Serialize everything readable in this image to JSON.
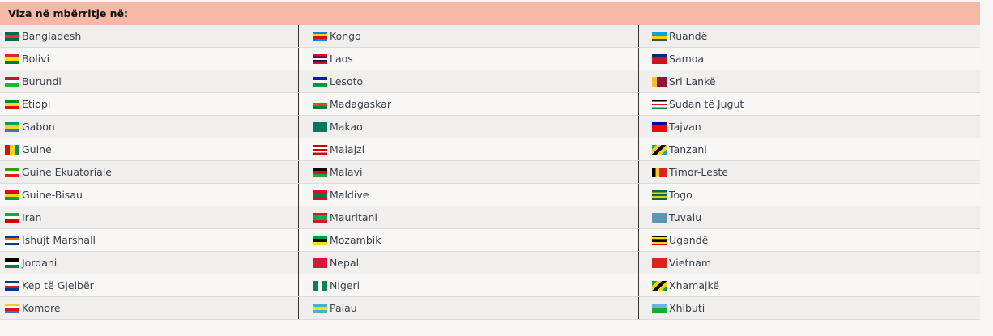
{
  "header": {
    "title": "Viza në mbërritje në:"
  },
  "columns": [
    [
      {
        "name": "Bangladesh",
        "flag": [
          "#006a4e",
          "#f42a41",
          "#006a4e"
        ],
        "icon": "bangladesh-flag-icon"
      },
      {
        "name": "Bolivi",
        "flag": [
          "#d52b1e",
          "#f9e300",
          "#007934"
        ],
        "icon": "bolivia-flag-icon"
      },
      {
        "name": "Burundi",
        "flag": [
          "#ce1126",
          "#ffffff",
          "#1eb53a"
        ],
        "icon": "burundi-flag-icon"
      },
      {
        "name": "Etiopi",
        "flag": [
          "#078930",
          "#fcdd09",
          "#da121a"
        ],
        "icon": "ethiopia-flag-icon"
      },
      {
        "name": "Gabon",
        "flag": [
          "#009e60",
          "#fcd116",
          "#3a75c4"
        ],
        "icon": "gabon-flag-icon"
      },
      {
        "name": "Guine",
        "flag": [
          "#ce1126",
          "#fcd116",
          "#009460"
        ],
        "dir": "v",
        "icon": "guinea-flag-icon"
      },
      {
        "name": "Guine Ekuatoriale",
        "flag": [
          "#3e9a00",
          "#ffffff",
          "#e32118"
        ],
        "icon": "equatorial-guinea-flag-icon"
      },
      {
        "name": "Guine-Bisau",
        "flag": [
          "#ce1126",
          "#fcd116",
          "#009e49"
        ],
        "icon": "guinea-bissau-flag-icon"
      },
      {
        "name": "Iran",
        "flag": [
          "#239f40",
          "#ffffff",
          "#da0000"
        ],
        "icon": "iran-flag-icon"
      },
      {
        "name": "Ishujt Marshall",
        "flag": [
          "#003893",
          "#dd7500",
          "#ffffff",
          "#003893"
        ],
        "icon": "marshall-islands-flag-icon"
      },
      {
        "name": "Jordani",
        "flag": [
          "#000000",
          "#ffffff",
          "#007a3d"
        ],
        "icon": "jordan-flag-icon"
      },
      {
        "name": "Kep të Gjelbër",
        "flag": [
          "#003893",
          "#ffffff",
          "#cf2027",
          "#003893"
        ],
        "icon": "cape-verde-flag-icon"
      },
      {
        "name": "Komore",
        "flag": [
          "#ffc61e",
          "#ffffff",
          "#ce1126",
          "#3a75c4"
        ],
        "icon": "comoros-flag-icon"
      }
    ],
    [
      {
        "name": "Kongo",
        "flag": [
          "#007fff",
          "#f7d618",
          "#ce1021",
          "#007fff"
        ],
        "icon": "dr-congo-flag-icon"
      },
      {
        "name": "Laos",
        "flag": [
          "#ce1126",
          "#002868",
          "#ffffff",
          "#002868",
          "#ce1126"
        ],
        "icon": "laos-flag-icon"
      },
      {
        "name": "Lesoto",
        "flag": [
          "#00209f",
          "#ffffff",
          "#009543"
        ],
        "icon": "lesotho-flag-icon"
      },
      {
        "name": "Madagaskar",
        "flag": [
          "#ffffff",
          "#fc3d32",
          "#007e3a"
        ],
        "icon": "madagascar-flag-icon"
      },
      {
        "name": "Makao",
        "flag": [
          "#00785e",
          "#00785e"
        ],
        "icon": "macau-flag-icon"
      },
      {
        "name": "Malajzi",
        "flag": [
          "#cc0001",
          "#ffffff",
          "#cc0001",
          "#ffffff",
          "#cc0001"
        ],
        "icon": "malaysia-flag-icon"
      },
      {
        "name": "Malavi",
        "flag": [
          "#000000",
          "#ce1126",
          "#339e35"
        ],
        "icon": "malawi-flag-icon"
      },
      {
        "name": "Maldive",
        "flag": [
          "#d21034",
          "#007e3a",
          "#d21034"
        ],
        "icon": "maldives-flag-icon"
      },
      {
        "name": "Mauritani",
        "flag": [
          "#d01c1f",
          "#00a95c",
          "#00a95c",
          "#d01c1f"
        ],
        "icon": "mauritania-flag-icon"
      },
      {
        "name": "Mozambik",
        "flag": [
          "#009a44",
          "#000000",
          "#fce100"
        ],
        "icon": "mozambique-flag-icon"
      },
      {
        "name": "Nepal",
        "flag": [
          "#dc143c",
          "#dc143c"
        ],
        "icon": "nepal-flag-icon"
      },
      {
        "name": "Nigeri",
        "flag": [
          "#008751",
          "#ffffff",
          "#008751"
        ],
        "dir": "v",
        "icon": "nigeria-flag-icon"
      },
      {
        "name": "Palau",
        "flag": [
          "#4aadd6",
          "#ffde00",
          "#4aadd6"
        ],
        "icon": "palau-flag-icon"
      }
    ],
    [
      {
        "name": "Ruandë",
        "flag": [
          "#00a1de",
          "#00a1de",
          "#fad201",
          "#20603d"
        ],
        "icon": "rwanda-flag-icon"
      },
      {
        "name": "Samoa",
        "flag": [
          "#002b7f",
          "#ce1126",
          "#ce1126"
        ],
        "icon": "samoa-flag-icon"
      },
      {
        "name": "Sri Lankë",
        "flag": [
          "#ffbe29",
          "#8d153a",
          "#8d153a"
        ],
        "dir": "v",
        "icon": "sri-lanka-flag-icon"
      },
      {
        "name": "Sudan të Jugut",
        "flag": [
          "#000000",
          "#ffffff",
          "#da121a",
          "#ffffff",
          "#078930"
        ],
        "icon": "south-sudan-flag-icon"
      },
      {
        "name": "Tajvan",
        "flag": [
          "#000095",
          "#fe0000",
          "#fe0000"
        ],
        "icon": "taiwan-flag-icon"
      },
      {
        "name": "Tanzani",
        "flag": [
          "#1eb53a",
          "#fcd116",
          "#000000",
          "#fcd116",
          "#00a3dd"
        ],
        "dir": "d",
        "icon": "tanzania-flag-icon"
      },
      {
        "name": "Timor-Leste",
        "flag": [
          "#000000",
          "#ffc726",
          "#dc241f",
          "#dc241f"
        ],
        "dir": "v",
        "icon": "timor-leste-flag-icon"
      },
      {
        "name": "Togo",
        "flag": [
          "#006a4e",
          "#ffce00",
          "#006a4e",
          "#ffce00",
          "#006a4e"
        ],
        "icon": "togo-flag-icon"
      },
      {
        "name": "Tuvalu",
        "flag": [
          "#5b97b1",
          "#5b97b1"
        ],
        "icon": "tuvalu-flag-icon"
      },
      {
        "name": "Ugandë",
        "flag": [
          "#000000",
          "#fcdc04",
          "#d90000",
          "#000000",
          "#fcdc04",
          "#d90000"
        ],
        "icon": "uganda-flag-icon"
      },
      {
        "name": "Vietnam",
        "flag": [
          "#da251d",
          "#da251d"
        ],
        "icon": "vietnam-flag-icon"
      },
      {
        "name": "Xhamajkë",
        "flag": [
          "#009b3a",
          "#fed100",
          "#000000",
          "#fed100",
          "#009b3a"
        ],
        "dir": "d",
        "icon": "jamaica-flag-icon"
      },
      {
        "name": "Xhibuti",
        "flag": [
          "#6ab2e7",
          "#12ad2b"
        ],
        "icon": "djibouti-flag-icon"
      }
    ]
  ]
}
